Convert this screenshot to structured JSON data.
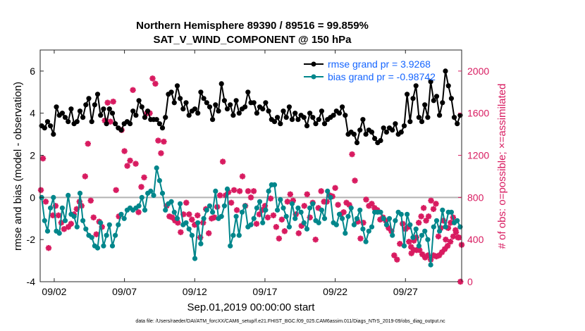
{
  "chart_data": {
    "type": "line",
    "title": "Northern Hemisphere 89390 / 89516 = 99.859%",
    "subtitle": "SAT_V_WIND_COMPONENT @ 150 hPa",
    "xlabel": "Sep.01,2019 00:00:00 start",
    "ylabel": "rmse and bias (model - observation)",
    "ylabel_right": "# of obs: o=possible; ×=assimilated",
    "x_tick_labels": [
      "09/02",
      "09/07",
      "09/12",
      "09/17",
      "09/22",
      "09/27"
    ],
    "x_tick_days": [
      1,
      6,
      11,
      16,
      21,
      26
    ],
    "xlim": [
      0,
      30
    ],
    "ylim": [
      -4,
      7
    ],
    "y_ticks": [
      -4,
      -2,
      0,
      2,
      4,
      6
    ],
    "ylim_right": [
      0,
      2200
    ],
    "y_ticks_right": [
      0,
      400,
      800,
      1200,
      1600,
      2000
    ],
    "footer": "data file: /Users/raeder/DAI/ATM_forcXX/CAM6_setup/f.e21.FHIST_BGC.f09_025.CAM6assim.011/Diags_NTrS_2019-09/obs_diag_output.nc",
    "legend": [
      {
        "label": "rmse grand pr = 3.9268",
        "color": "#000000"
      },
      {
        "label": "bias grand pr = -0.98742",
        "color": "#00868b"
      }
    ],
    "colors": {
      "rmse": "#000000",
      "bias": "#00868b",
      "obs": "#d81b60",
      "zero": "#b3b3b3"
    },
    "rmse": [
      3.4,
      3.3,
      3.6,
      3.4,
      3.0,
      4.3,
      3.9,
      4.0,
      3.8,
      3.6,
      4.2,
      3.5,
      3.6,
      4.1,
      3.8,
      4.4,
      4.7,
      3.6,
      4.4,
      4.9,
      3.9,
      4.2,
      3.5,
      4.2,
      4.0,
      3.5,
      3.3,
      3.2,
      3.5,
      3.6,
      3.5,
      4.1,
      3.9,
      4.6,
      4.3,
      3.8,
      4.1,
      3.7,
      3.7,
      3.7,
      3.5,
      3.3,
      3.8,
      4.9,
      5.0,
      4.5,
      5.3,
      4.7,
      4.2,
      4.5,
      3.9,
      4.1,
      4.2,
      4.0,
      5.0,
      4.7,
      4.5,
      4.3,
      3.7,
      4.4,
      4.1,
      5.4,
      4.6,
      4.2,
      4.4,
      3.9,
      4.6,
      4.0,
      4.2,
      4.3,
      5.0,
      4.5,
      4.5,
      4.0,
      4.3,
      4.2,
      4.5,
      4.1,
      3.7,
      3.6,
      3.8,
      3.5,
      4.1,
      3.8,
      4.3,
      3.7,
      4.0,
      3.7,
      3.9,
      3.8,
      3.4,
      4.0,
      3.8,
      3.5,
      3.7,
      4.1,
      3.5,
      3.7,
      3.8,
      3.9,
      4.1,
      4.0,
      4.3,
      3.9,
      3.0,
      3.1,
      3.0,
      2.6,
      3.2,
      3.7,
      3.0,
      3.2,
      3.1,
      2.8,
      2.6,
      2.7,
      3.3,
      3.1,
      3.3,
      3.2,
      3.5,
      3.0,
      3.1,
      3.4,
      4.9,
      3.6,
      4.7,
      5.3,
      3.8,
      3.6,
      4.4,
      3.8,
      5.5,
      4.6,
      4.8,
      3.9,
      4.5,
      6.0,
      5.3,
      4.7,
      3.8,
      3.5,
      3.9
    ],
    "bias": [
      0.0,
      -1.1,
      -1.6,
      -0.5,
      0.0,
      -1.6,
      -1.7,
      -0.5,
      -1.1,
      0.1,
      -0.8,
      -0.9,
      -1.4,
      0.2,
      -1.1,
      -1.5,
      -1.8,
      -1.9,
      -2.3,
      -2.4,
      -1.2,
      -2.3,
      -1.8,
      -1.3,
      -2.3,
      -1.8,
      -1.3,
      -0.8,
      -1.0,
      -0.6,
      -0.5,
      -0.6,
      -0.5,
      -0.4,
      0.0,
      -0.6,
      0.2,
      0.3,
      0.1,
      1.4,
      0.8,
      0.2,
      -0.6,
      -0.3,
      -0.2,
      -0.7,
      -1.0,
      -0.3,
      -1.3,
      -1.2,
      -1.5,
      -1.8,
      -2.9,
      -1.2,
      -2.2,
      -1.0,
      -0.6,
      -0.4,
      -0.7,
      0.3,
      -1.0,
      -0.9,
      -0.4,
      0.4,
      -2.3,
      -1.8,
      -0.9,
      -1.8,
      -0.7,
      -0.4,
      -1.4,
      -1.3,
      -1.0,
      -0.5,
      -0.2,
      -1.2,
      -0.6,
      0.3,
      0.6,
      0.6,
      -0.6,
      -0.1,
      -0.5,
      -0.9,
      -1.4,
      -0.3,
      -1.0,
      -0.5,
      -0.7,
      -1.2,
      -1.5,
      -0.5,
      -0.3,
      -1.1,
      -1.2,
      -0.6,
      -1.0,
      0.3,
      0.0,
      -1.2,
      -1.3,
      -0.8,
      -1.0,
      -1.7,
      -0.9,
      -0.5,
      -1.3,
      -1.0,
      -0.6,
      -1.5,
      -2.1,
      -1.6,
      -1.4,
      -0.7,
      -0.7,
      -0.7,
      -1.0,
      -1.3,
      -1.0,
      -1.8,
      -1.1,
      -0.7,
      -0.8,
      -2.3,
      -0.8,
      -1.3,
      -1.9,
      -1.5,
      -2.3,
      -1.8,
      -1.6,
      -2.0,
      -3.2,
      -1.4,
      -1.1,
      -1.6,
      -0.6,
      -1.4,
      -0.7,
      -0.7,
      -1.2,
      -1.1,
      -1.4
    ],
    "obs_x": [
      0.05,
      0.2,
      0.4,
      0.6,
      0.9,
      1.1,
      1.3,
      1.5,
      1.7,
      2.0,
      2.2,
      2.4,
      2.6,
      2.8,
      2.95,
      3.2,
      3.4,
      3.6,
      3.8,
      4.0,
      4.2,
      4.4,
      4.6,
      4.8,
      5.0,
      5.2,
      5.4,
      5.6,
      5.8,
      6.0,
      6.2,
      6.4,
      6.6,
      6.8,
      7.0,
      7.2,
      7.4,
      7.6,
      7.8,
      8.0,
      8.2,
      8.4,
      8.6,
      8.8,
      9.0,
      9.2,
      9.4,
      9.6,
      9.8,
      10.0,
      10.2,
      10.4,
      10.6,
      10.8,
      11.0,
      11.2,
      11.4,
      11.6,
      11.8,
      12.0,
      12.2,
      12.4,
      12.6,
      12.8,
      13.0,
      13.2,
      13.4,
      13.6,
      13.8,
      14.0,
      14.2,
      14.4,
      14.6,
      14.8,
      15.0,
      15.2,
      15.4,
      15.6,
      15.8,
      16.0,
      16.2,
      16.4,
      16.6,
      16.8,
      17.0,
      17.2,
      17.4,
      17.6,
      17.8,
      18.0,
      18.2,
      18.4,
      18.6,
      18.8,
      19.0,
      19.2,
      19.4,
      19.6,
      19.8,
      20.0,
      20.2,
      20.4,
      20.6,
      20.8,
      21.0,
      21.2,
      21.4,
      21.6,
      21.8,
      22.0,
      22.2,
      22.4,
      22.6,
      22.8,
      23.0,
      23.2,
      23.4,
      23.6,
      23.8,
      24.0,
      24.2,
      24.4,
      24.6,
      24.8,
      25.0,
      25.2,
      25.4,
      25.6,
      25.8,
      26.0,
      26.2,
      26.4,
      26.6,
      26.8,
      27.0,
      27.2,
      27.4,
      27.6,
      27.8,
      28.0,
      28.2,
      28.4,
      28.6,
      28.8,
      29.0,
      29.2,
      29.4,
      29.6,
      29.8,
      30.0
    ],
    "obs": [
      870,
      1170,
      760,
      320,
      630,
      720,
      630,
      560,
      500,
      520,
      550,
      640,
      690,
      760,
      720,
      1000,
      1310,
      770,
      610,
      450,
      570,
      520,
      1530,
      1700,
      1520,
      1710,
      870,
      620,
      1440,
      1240,
      1100,
      1150,
      1820,
      1120,
      660,
      900,
      990,
      1600,
      1600,
      1930,
      1880,
      1340,
      1220,
      1330,
      720,
      620,
      610,
      580,
      560,
      470,
      640,
      750,
      640,
      590,
      540,
      630,
      420,
      560,
      690,
      460,
      600,
      610,
      710,
      820,
      1140,
      820,
      850,
      750,
      870,
      680,
      860,
      1000,
      720,
      860,
      800,
      860,
      550,
      640,
      680,
      720,
      610,
      790,
      630,
      520,
      410,
      590,
      480,
      760,
      830,
      770,
      640,
      460,
      530,
      720,
      830,
      610,
      750,
      400,
      700,
      860,
      760,
      760,
      820,
      810,
      890,
      730,
      640,
      660,
      750,
      730,
      1210,
      960,
      570,
      410,
      560,
      780,
      720,
      740,
      700,
      680,
      590,
      610,
      580,
      510,
      480,
      250,
      210,
      360,
      550,
      500,
      520,
      330,
      390,
      300,
      300,
      260,
      230,
      250,
      210,
      250,
      240,
      250,
      280,
      310,
      340,
      380,
      430,
      470,
      420,
      350,
      380,
      270,
      300,
      420,
      560,
      620,
      700,
      580,
      620,
      770,
      690,
      740,
      430,
      510,
      580,
      400,
      510,
      560,
      610,
      490,
      420,
      0
    ],
    "obs_count": 181
  }
}
